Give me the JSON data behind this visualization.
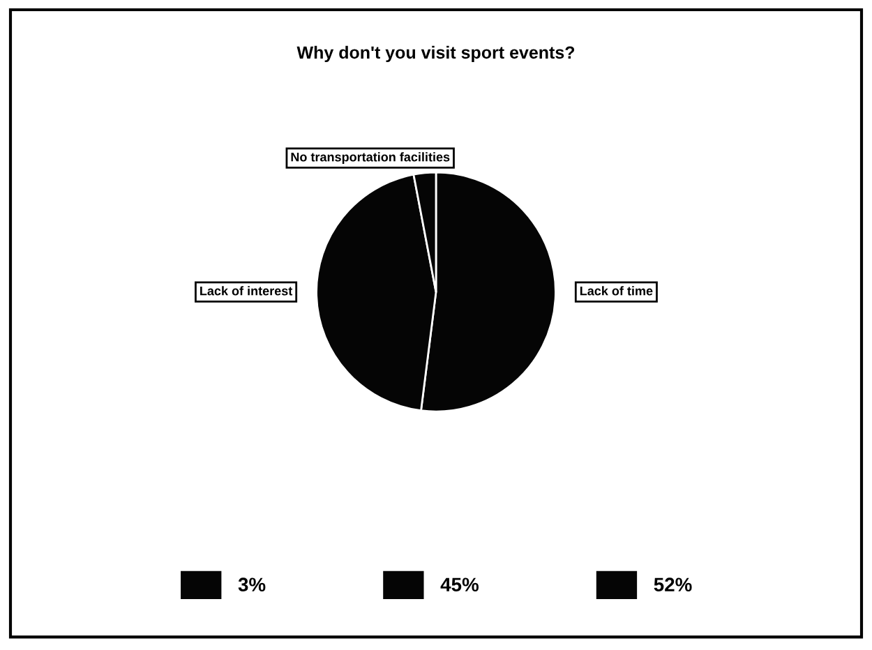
{
  "chart_data": {
    "type": "pie",
    "title": "Why don't you visit sport events?",
    "categories": [
      "52%",
      "45%",
      "3%"
    ],
    "values": [
      52,
      45,
      3
    ],
    "colors": [
      "#050505",
      "#050505",
      "#050505"
    ],
    "annotations": [
      {
        "text": "Lack of time",
        "x": "52%"
      },
      {
        "text": "Lack of interest",
        "x": "45%"
      },
      {
        "text": "No transportation facilities",
        "x": "3%"
      }
    ],
    "legend": "bottom"
  }
}
